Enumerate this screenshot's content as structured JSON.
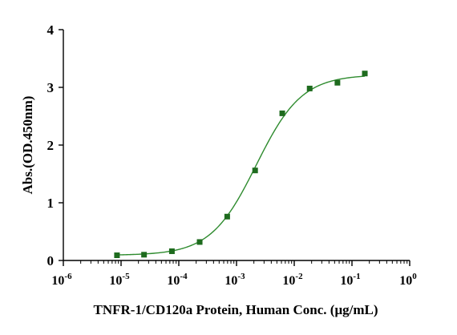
{
  "chart_data": {
    "type": "scatter",
    "xlabel": "TNFR-1/CD120a Protein, Human Conc. (μg/mL)",
    "ylabel": "Abs.(OD.450nm)",
    "x_scale": "log10",
    "xlim": [
      1e-06,
      1
    ],
    "ylim": [
      0,
      4
    ],
    "x_ticks": [
      {
        "base": "10",
        "exp": "-6",
        "value": 1e-06
      },
      {
        "base": "10",
        "exp": "-5",
        "value": 1e-05
      },
      {
        "base": "10",
        "exp": "-4",
        "value": 0.0001
      },
      {
        "base": "10",
        "exp": "-3",
        "value": 0.001
      },
      {
        "base": "10",
        "exp": "-2",
        "value": 0.01
      },
      {
        "base": "10",
        "exp": "-1",
        "value": 0.1
      },
      {
        "base": "10",
        "exp": "0",
        "value": 1
      }
    ],
    "y_ticks": [
      "0",
      "1",
      "2",
      "3",
      "4"
    ],
    "grid": false,
    "marker_color": "#1e6b1e",
    "curve_color": "#2e8b2e",
    "series": [
      {
        "marker": "square",
        "points": [
          {
            "x": 8.5e-06,
            "y": 0.09
          },
          {
            "x": 2.5e-05,
            "y": 0.1
          },
          {
            "x": 7.6e-05,
            "y": 0.16
          },
          {
            "x": 0.00023,
            "y": 0.32
          },
          {
            "x": 0.00069,
            "y": 0.76
          },
          {
            "x": 0.0021,
            "y": 1.56
          },
          {
            "x": 0.0062,
            "y": 2.55
          },
          {
            "x": 0.0185,
            "y": 2.98
          },
          {
            "x": 0.056,
            "y": 3.08
          },
          {
            "x": 0.167,
            "y": 3.24
          }
        ],
        "fit": "4PL",
        "fit_params": {
          "bottom": 0.09,
          "top": 3.22,
          "ec50": 0.0022,
          "hill": 1.1
        }
      }
    ]
  }
}
